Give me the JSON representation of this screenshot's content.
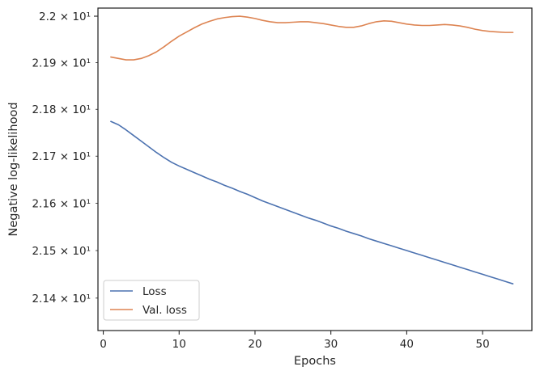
{
  "chart_data": {
    "type": "line",
    "title": "",
    "xlabel": "Epochs",
    "ylabel": "Negative log-likelihood",
    "xlim": [
      -0.7,
      56.5
    ],
    "ylim": [
      21.332,
      22.0175
    ],
    "yscale": "log",
    "grid": false,
    "legend_position": "bottom-left",
    "x_ticks": [
      0,
      10,
      20,
      30,
      40,
      50
    ],
    "y_ticks": [
      {
        "value": 21.4,
        "label": "2.14 × 10¹"
      },
      {
        "value": 21.5,
        "label": "2.15 × 10¹"
      },
      {
        "value": 21.6,
        "label": "2.16 × 10¹"
      },
      {
        "value": 21.7,
        "label": "2.17 × 10¹"
      },
      {
        "value": 21.8,
        "label": "2.18 × 10¹"
      },
      {
        "value": 21.9,
        "label": "2.19 × 10¹"
      },
      {
        "value": 22.0,
        "label": "2.2 × 10¹"
      }
    ],
    "series": [
      {
        "name": "Loss",
        "color": "#4c72b0",
        "x": [
          1,
          2,
          3,
          4,
          5,
          6,
          7,
          8,
          9,
          10,
          11,
          12,
          13,
          14,
          15,
          16,
          17,
          18,
          19,
          20,
          21,
          22,
          23,
          24,
          25,
          26,
          27,
          28,
          29,
          30,
          31,
          32,
          33,
          34,
          35,
          36,
          37,
          38,
          39,
          40,
          41,
          42,
          43,
          44,
          45,
          46,
          47,
          48,
          49,
          50,
          51,
          52,
          53,
          54
        ],
        "values": [
          21.774,
          21.767,
          21.756,
          21.744,
          21.732,
          21.72,
          21.708,
          21.697,
          21.687,
          21.679,
          21.672,
          21.665,
          21.658,
          21.651,
          21.645,
          21.638,
          21.632,
          21.625,
          21.619,
          21.612,
          21.605,
          21.599,
          21.593,
          21.587,
          21.581,
          21.575,
          21.569,
          21.564,
          21.558,
          21.552,
          21.547,
          21.541,
          21.536,
          21.531,
          21.525,
          21.52,
          21.515,
          21.51,
          21.505,
          21.5,
          21.495,
          21.49,
          21.485,
          21.48,
          21.475,
          21.47,
          21.465,
          21.46,
          21.455,
          21.45,
          21.445,
          21.44,
          21.435,
          21.43
        ]
      },
      {
        "name": "Val. loss",
        "color": "#dd8452",
        "x": [
          1,
          2,
          3,
          4,
          5,
          6,
          7,
          8,
          9,
          10,
          11,
          12,
          13,
          14,
          15,
          16,
          17,
          18,
          19,
          20,
          21,
          22,
          23,
          24,
          25,
          26,
          27,
          28,
          29,
          30,
          31,
          32,
          33,
          34,
          35,
          36,
          37,
          38,
          39,
          40,
          41,
          42,
          43,
          44,
          45,
          46,
          47,
          48,
          49,
          50,
          51,
          52,
          53,
          54
        ],
        "values": [
          21.912,
          21.909,
          21.906,
          21.906,
          21.909,
          21.915,
          21.923,
          21.934,
          21.946,
          21.957,
          21.966,
          21.975,
          21.983,
          21.989,
          21.994,
          21.997,
          21.999,
          22.0,
          21.998,
          21.995,
          21.991,
          21.988,
          21.986,
          21.986,
          21.987,
          21.988,
          21.988,
          21.986,
          21.984,
          21.981,
          21.978,
          21.976,
          21.976,
          21.979,
          21.984,
          21.988,
          21.99,
          21.989,
          21.986,
          21.983,
          21.981,
          21.98,
          21.98,
          21.981,
          21.982,
          21.981,
          21.979,
          21.976,
          21.972,
          21.969,
          21.967,
          21.966,
          21.965,
          21.965
        ]
      }
    ]
  }
}
